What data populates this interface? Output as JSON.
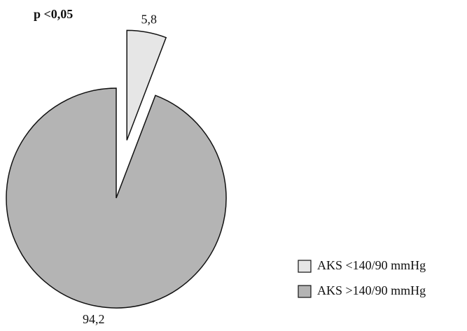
{
  "chart_data": {
    "type": "pie",
    "annotation": "p <0,05",
    "categories": [
      "AKS <140/90 mmHg",
      "AKS >140/90 mmHg"
    ],
    "values": [
      5.8,
      94.2
    ],
    "value_labels": [
      "5,8",
      "94,2"
    ],
    "colors": [
      "#e6e6e6",
      "#b4b4b4"
    ]
  }
}
